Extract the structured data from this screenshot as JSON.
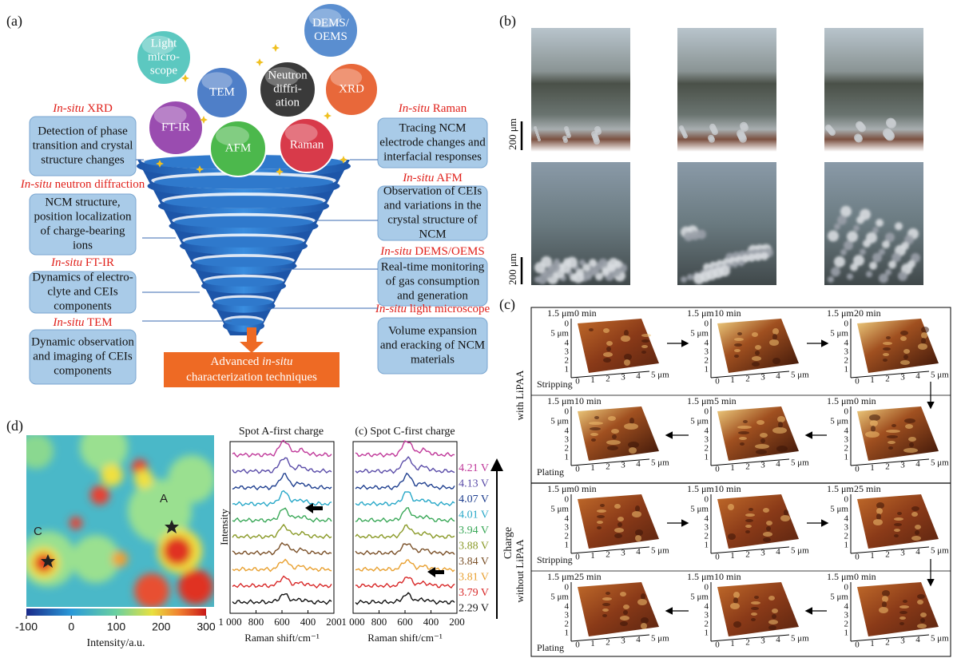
{
  "panel_a": {
    "label": "(a)",
    "bubbles": [
      {
        "lines": [
          "Light",
          "micro-",
          "scope"
        ],
        "color": "#5cc8c0"
      },
      {
        "lines": [
          "DEMS/",
          "OEMS"
        ],
        "color": "#5a8ed0"
      },
      {
        "lines": [
          "TEM"
        ],
        "color": "#4f7fc8"
      },
      {
        "lines": [
          "Neutron",
          "diffri-",
          "ation"
        ],
        "color": "#3a3a3a"
      },
      {
        "lines": [
          "XRD"
        ],
        "color": "#e8683a"
      },
      {
        "lines": [
          "FT-IR"
        ],
        "color": "#9a4cb0"
      },
      {
        "lines": [
          "AFM"
        ],
        "color": "#4cb84c"
      },
      {
        "lines": [
          "Raman"
        ],
        "color": "#d83a4a"
      }
    ],
    "left": [
      {
        "em": "In-situ",
        "rest": " XRD",
        "lines": [
          "Detection of phase",
          "transition and crystal",
          "structure changes"
        ]
      },
      {
        "em": "In-situ",
        "rest": " neutron diffraction",
        "lines": [
          "NCM structure,",
          "position localization",
          "of charge-bearing",
          "ions"
        ]
      },
      {
        "em": "In-situ",
        "rest": " FT-IR",
        "lines": [
          "Dynamics of electro-",
          "clyte and CEIs",
          "components"
        ]
      },
      {
        "em": "In-situ",
        "rest": " TEM",
        "lines": [
          "Dynamic observation",
          "and imaging of CEIs",
          "components"
        ]
      }
    ],
    "right": [
      {
        "em": "In-situ",
        "rest": " Raman",
        "lines": [
          "Tracing NCM",
          "electrode changes and",
          "interfacial responses"
        ]
      },
      {
        "em": "In-situ",
        "rest": " AFM",
        "lines": [
          "Observation of  CEIs",
          "and variations in the",
          "crystal structure of",
          "NCM"
        ]
      },
      {
        "em": "In-situ",
        "rest": " DEMS/OEMS",
        "lines": [
          "Real-time monitoring",
          "of gas consumption",
          "and generation"
        ]
      },
      {
        "em": "In-situ",
        "rest": " light microscope",
        "lines": [
          "Volume expansion",
          "and eracking of NCM",
          "materials"
        ]
      }
    ],
    "final": {
      "pre": "Advanced ",
      "em": "in-situ",
      "line2": "characterization techniques"
    }
  },
  "panel_b": {
    "label": "(b)",
    "scale_bar": "200 μm"
  },
  "panel_c": {
    "label": "(c)",
    "groups": [
      "with LiPAA",
      "without LiPAA"
    ],
    "z_label": "1.5 μm",
    "z_zero": 0,
    "y_end": "5 μm",
    "y_ticks": [
      4,
      3,
      2,
      1
    ],
    "x_ticks": [
      0,
      1,
      2,
      3,
      4
    ],
    "x_end": "5 μm",
    "rows": [
      {
        "label": "Stripping",
        "times": [
          "0 min",
          "10 min",
          "20 min"
        ]
      },
      {
        "label": "Plating",
        "times": [
          "10 min",
          "5 min",
          "0 min"
        ]
      },
      {
        "label": "Stripping",
        "times": [
          "0 min",
          "10 min",
          "25 min"
        ]
      },
      {
        "label": "Plating",
        "times": [
          "25 min",
          "10 min",
          "0 min"
        ]
      }
    ]
  },
  "panel_d": {
    "label": "(d)",
    "spots": [
      "A",
      "C"
    ],
    "colorbar": {
      "ticks": [
        -100,
        0,
        100,
        200,
        300
      ],
      "label": "Intensity/a.u."
    },
    "spectra": {
      "titles": [
        "Spot A-first charge",
        "(c) Spot C-first charge"
      ],
      "y_label": "Intensity",
      "x_label": "Raman shift/cm⁻¹",
      "xlim": [
        1000,
        200
      ],
      "xticks": [
        {
          "value": 1000,
          "label": "1 000"
        },
        800,
        600,
        400,
        200
      ],
      "voltages": [
        {
          "label": "4.21 V",
          "color": "#c0399a"
        },
        {
          "label": "4.13 V",
          "color": "#5a4ca8"
        },
        {
          "label": "4.07 V",
          "color": "#1f3f8f"
        },
        {
          "label": "4.01 V",
          "color": "#28a8c8"
        },
        {
          "label": "3.94 V",
          "color": "#3aa858"
        },
        {
          "label": "3.88 V",
          "color": "#8a9a28"
        },
        {
          "label": "3.84 V",
          "color": "#7a5028"
        },
        {
          "label": "3.81 V",
          "color": "#e8a030"
        },
        {
          "label": "3.79 V",
          "color": "#d82828"
        },
        {
          "label": "2.29 V",
          "color": "#111111"
        }
      ],
      "charge_label": "Charge"
    }
  }
}
